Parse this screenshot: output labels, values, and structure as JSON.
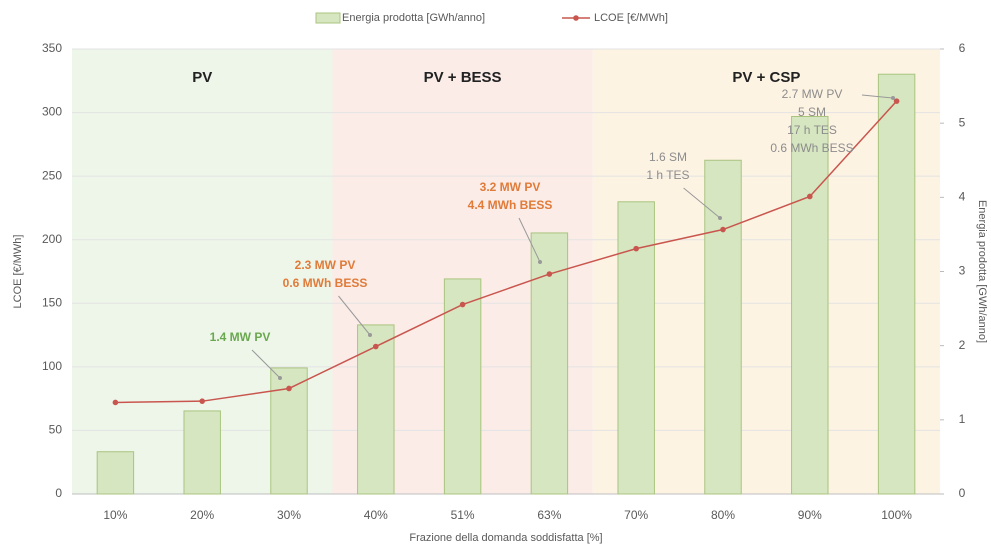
{
  "chart_data": {
    "type": "bar_line",
    "categories": [
      "10%",
      "20%",
      "30%",
      "40%",
      "51%",
      "63%",
      "70%",
      "80%",
      "90%",
      "100%"
    ],
    "xlabel": "Frazione della domanda soddisfatta [%]",
    "ylabel": "LCOE [€/MWh]",
    "y2label": "Energia prodotta [GWh/anno]",
    "ylim": [
      0,
      350
    ],
    "yticks": [
      0,
      50,
      100,
      150,
      200,
      250,
      300,
      350
    ],
    "y2lim": [
      0,
      6
    ],
    "y2ticks": [
      0,
      1,
      2,
      3,
      4,
      5,
      6
    ],
    "legend": "top",
    "series": [
      {
        "name": "Energia prodotta [GWh/anno]",
        "type": "bar",
        "axis": "y2",
        "color": "#d6e6c0",
        "values": [
          0.57,
          1.12,
          1.7,
          2.28,
          2.9,
          3.52,
          3.94,
          4.5,
          5.09,
          5.66
        ]
      },
      {
        "name": "LCOE [€/MWh]",
        "type": "line",
        "color": "#c9564e",
        "values": [
          72,
          73,
          83,
          116,
          149,
          173,
          193,
          208,
          234,
          309
        ]
      }
    ],
    "regions": [
      {
        "label": "PV",
        "start": "10%",
        "end": "30%",
        "color": "#eef6ea"
      },
      {
        "label": "PV + BESS",
        "start": "40%",
        "end": "63%",
        "color": "#fbece8"
      },
      {
        "label": "PV + CSP",
        "start": "70%",
        "end": "100%",
        "color": "#fdf3e3"
      }
    ],
    "annotations": [
      {
        "lines": [
          "1.4 MW PV"
        ],
        "color": "#6aa84f"
      },
      {
        "lines": [
          "2.3 MW PV",
          "0.6 MWh BESS"
        ],
        "color": "#e07b39"
      },
      {
        "lines": [
          "3.2 MW PV",
          "4.4 MWh BESS"
        ],
        "color": "#e07b39"
      },
      {
        "lines": [
          "1.6 SM",
          "1 h TES"
        ],
        "color": "#8c8c8c"
      },
      {
        "lines": [
          "2.7 MW PV",
          "5 SM",
          "17 h TES",
          "0.6 MWh BESS"
        ],
        "color": "#8c8c8c"
      }
    ]
  }
}
